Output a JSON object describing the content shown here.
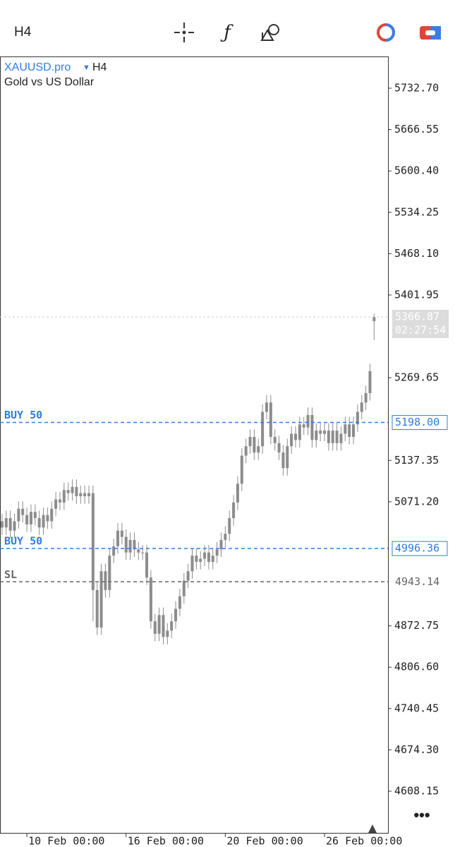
{
  "toolbar": {
    "timeframe": "H4"
  },
  "chart_data": {
    "type": "candlestick",
    "symbol": "XAUUSD.pro",
    "timeframe": "H4",
    "subtitle": "Gold vs US Dollar",
    "categories": [
      null,
      null,
      null,
      null,
      null,
      null,
      "10 Feb 00:00",
      null,
      null,
      null,
      null,
      null,
      null,
      null,
      null,
      null,
      null,
      null,
      null,
      null,
      null,
      null,
      null,
      null,
      null,
      null,
      null,
      null,
      null,
      null,
      "16 Feb 00:00",
      null,
      null,
      null,
      null,
      null,
      null,
      null,
      null,
      null,
      null,
      null,
      null,
      null,
      null,
      null,
      null,
      null,
      null,
      null,
      null,
      null,
      null,
      null,
      "20 Feb 00:00",
      null,
      null,
      null,
      null,
      null,
      null,
      null,
      null,
      null,
      null,
      null,
      null,
      null,
      null,
      null,
      null,
      null,
      null,
      null,
      null,
      null,
      null,
      null,
      "26 Feb 00:00",
      null,
      null,
      null,
      null,
      null,
      null,
      null,
      null,
      null,
      null,
      null,
      null
    ],
    "open": [
      5040,
      5030,
      5045,
      5025,
      5040,
      5060,
      5050,
      5035,
      5055,
      5045,
      5030,
      5050,
      5040,
      5060,
      5075,
      5070,
      5090,
      5085,
      5095,
      5080,
      5085,
      5080,
      5085,
      4930,
      4870,
      4960,
      4930,
      4985,
      5000,
      5025,
      5015,
      4990,
      5010,
      4995,
      4990,
      4990,
      4950,
      4880,
      4860,
      4890,
      4855,
      4865,
      4880,
      4900,
      4920,
      4945,
      4960,
      4985,
      4975,
      4980,
      4990,
      4975,
      4985,
      4995,
      5010,
      5020,
      5045,
      5070,
      5100,
      5145,
      5160,
      5175,
      5150,
      5160,
      5215,
      5230,
      5175,
      5165,
      5150,
      5125,
      5160,
      5180,
      5170,
      5195,
      5190,
      5210,
      5170,
      5185,
      5180,
      5185,
      5165,
      5185,
      5165,
      5180,
      5195,
      5175,
      5195,
      5215,
      5230,
      5245,
      5360
    ],
    "high": [
      5052,
      5057,
      5057,
      5052,
      5072,
      5072,
      5062,
      5067,
      5067,
      5057,
      5062,
      5062,
      5072,
      5087,
      5087,
      5102,
      5102,
      5107,
      5107,
      5097,
      5097,
      5097,
      5097,
      4942,
      4972,
      4972,
      4997,
      5012,
      5037,
      5037,
      5027,
      5022,
      5022,
      5007,
      5002,
      5002,
      4962,
      4892,
      4902,
      4902,
      4877,
      4892,
      4912,
      4932,
      4957,
      4972,
      4997,
      4997,
      4992,
      5002,
      5002,
      4997,
      5007,
      5022,
      5032,
      5057,
      5082,
      5112,
      5157,
      5172,
      5187,
      5187,
      5172,
      5227,
      5242,
      5242,
      5187,
      5177,
      5162,
      5172,
      5192,
      5192,
      5207,
      5207,
      5222,
      5222,
      5197,
      5197,
      5197,
      5197,
      5197,
      5197,
      5192,
      5207,
      5207,
      5207,
      5227,
      5242,
      5257,
      5292,
      5372
    ],
    "low": [
      5018,
      5018,
      5013,
      5013,
      5028,
      5038,
      5023,
      5023,
      5033,
      5018,
      5018,
      5028,
      5028,
      5048,
      5058,
      5058,
      5073,
      5073,
      5068,
      5068,
      5068,
      5068,
      4880,
      4858,
      4858,
      4918,
      4918,
      4973,
      4988,
      5003,
      4978,
      4978,
      4983,
      4978,
      4978,
      4938,
      4868,
      4848,
      4848,
      4843,
      4843,
      4853,
      4868,
      4888,
      4908,
      4933,
      4948,
      4963,
      4963,
      4968,
      4963,
      4963,
      4973,
      4983,
      4998,
      5008,
      5033,
      5058,
      5088,
      5133,
      5148,
      5138,
      5138,
      5148,
      5203,
      5163,
      5153,
      5138,
      5113,
      5113,
      5148,
      5158,
      5158,
      5178,
      5178,
      5158,
      5158,
      5168,
      5168,
      5153,
      5153,
      5153,
      5153,
      5168,
      5163,
      5163,
      5183,
      5203,
      5218,
      5233,
      5330
    ],
    "close": [
      5030,
      5045,
      5025,
      5040,
      5060,
      5050,
      5035,
      5055,
      5045,
      5030,
      5050,
      5040,
      5060,
      5075,
      5070,
      5090,
      5085,
      5095,
      5080,
      5085,
      5080,
      5085,
      4930,
      4870,
      4960,
      4930,
      4985,
      5000,
      5025,
      5015,
      4990,
      5010,
      4995,
      4990,
      4990,
      4950,
      4880,
      4860,
      4890,
      4855,
      4865,
      4880,
      4900,
      4920,
      4945,
      4960,
      4985,
      4975,
      4980,
      4990,
      4975,
      4985,
      4995,
      5010,
      5020,
      5045,
      5070,
      5100,
      5145,
      5160,
      5175,
      5150,
      5160,
      5215,
      5230,
      5175,
      5165,
      5150,
      5125,
      5160,
      5180,
      5170,
      5195,
      5190,
      5210,
      5170,
      5185,
      5180,
      5185,
      5165,
      5185,
      5165,
      5180,
      5195,
      5175,
      5195,
      5215,
      5230,
      5245,
      5280,
      5366.87
    ],
    "color": "#8c8c8c",
    "countdown": "02:27:54",
    "ylim": [
      4541.5,
      5783.5
    ],
    "yticks": [
      {
        "value": 5732.7,
        "label": "5732.70"
      },
      5666.55,
      {
        "value": 5600.4,
        "label": "5600.40"
      },
      5534.25,
      {
        "value": 5468.1,
        "label": "5468.10"
      },
      5401.95,
      5269.65,
      5137.35,
      {
        "value": 5071.2,
        "label": "5071.20"
      },
      4872.75,
      {
        "value": 4806.6,
        "label": "4806.60"
      },
      4740.45,
      {
        "value": 4674.3,
        "label": "4674.30"
      },
      4608.15
    ],
    "levels": [
      {
        "name": "BUY 50",
        "value": 5198,
        "label": "5198.00",
        "color": "#2f7de1"
      },
      {
        "name": "BUY 50",
        "value": 4996.36,
        "color": "#2f7de1"
      },
      {
        "name": "SL",
        "value": 4943.14,
        "color": "#666666"
      }
    ]
  }
}
